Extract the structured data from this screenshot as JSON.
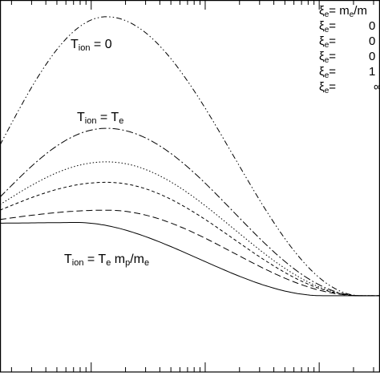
{
  "chart_data": {
    "type": "line",
    "title": "",
    "xlabel": "",
    "ylabel": "",
    "xlim": [
      0,
      1
    ],
    "ylim": [
      0,
      1
    ],
    "grid": false,
    "legend_position": "top-right",
    "legend": {
      "entries": [
        {
          "sym": "ξ",
          "sub": "e",
          "eq": "=",
          "val": "m",
          "val_sub": "e",
          "val_tail": "/m"
        },
        {
          "sym": "ξ",
          "sub": "e",
          "eq": "=",
          "val": "0",
          "val_sub": "",
          "val_tail": ""
        },
        {
          "sym": "ξ",
          "sub": "e",
          "eq": "=",
          "val": "0",
          "val_sub": "",
          "val_tail": ""
        },
        {
          "sym": "ξ",
          "sub": "e",
          "eq": "=",
          "val": "0",
          "val_sub": "",
          "val_tail": ""
        },
        {
          "sym": "ξ",
          "sub": "e",
          "eq": "=",
          "val": "1",
          "val_sub": "",
          "val_tail": ""
        },
        {
          "sym": "ξ",
          "sub": "e",
          "eq": "=",
          "val": "∞",
          "val_sub": "",
          "val_tail": ""
        }
      ]
    },
    "annotations": {
      "a1": {
        "main": "T",
        "sub": "ion",
        "rest": " = 0"
      },
      "a2": {
        "main": "T",
        "sub": "ion",
        "rest": " = T",
        "sub2": "e"
      },
      "a3": {
        "main": "T",
        "sub": "ion",
        "rest": " = T",
        "sub2": "e",
        "rest2": " m",
        "sub3": "p",
        "rest3": "/m",
        "sub4": "e"
      }
    },
    "series": [
      {
        "style": "dashdotdot",
        "peak_x": 0.28,
        "peak_y": 0.955,
        "left_y": 0.61,
        "right_y": 0.205
      },
      {
        "style": "dashdot",
        "peak_x": 0.28,
        "peak_y": 0.655,
        "left_y": 0.47,
        "right_y": 0.205
      },
      {
        "style": "dotted",
        "peak_x": 0.28,
        "peak_y": 0.565,
        "left_y": 0.45,
        "right_y": 0.205
      },
      {
        "style": "shortdash",
        "peak_x": 0.28,
        "peak_y": 0.51,
        "left_y": 0.435,
        "right_y": 0.205
      },
      {
        "style": "longdash",
        "peak_x": 0.28,
        "peak_y": 0.435,
        "left_y": 0.41,
        "right_y": 0.205
      },
      {
        "style": "solid",
        "peak_x": 0.2,
        "peak_y": 0.402,
        "left_y": 0.4,
        "right_y": 0.205
      }
    ]
  }
}
